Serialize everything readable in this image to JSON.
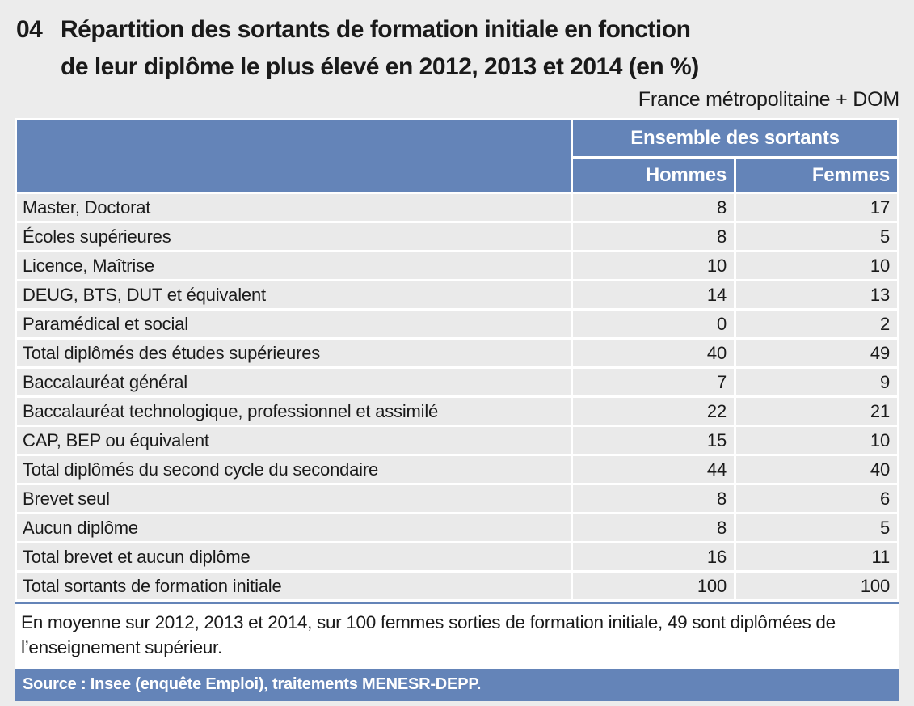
{
  "header": {
    "figure_number": "04",
    "title_lines": [
      "Répartition des sortants de formation initiale en fonction",
      "de leur diplôme le plus élevé en 2012, 2013 et 2014 (en %)"
    ],
    "region_label": "France métropolitaine + DOM"
  },
  "table": {
    "group_header": "Ensemble des sortants",
    "columns": [
      "Hommes",
      "Femmes"
    ],
    "rows": [
      {
        "label": "Master, Doctorat",
        "hommes": "8",
        "femmes": "17"
      },
      {
        "label": "Écoles supérieures",
        "hommes": "8",
        "femmes": "5"
      },
      {
        "label": "Licence, Maîtrise",
        "hommes": "10",
        "femmes": "10"
      },
      {
        "label": "DEUG, BTS, DUT et équivalent",
        "hommes": "14",
        "femmes": "13"
      },
      {
        "label": "Paramédical et social",
        "hommes": "0",
        "femmes": "2"
      },
      {
        "label": "Total diplômés des études supérieures",
        "hommes": "40",
        "femmes": "49"
      },
      {
        "label": "Baccalauréat général",
        "hommes": "7",
        "femmes": "9"
      },
      {
        "label": "Baccalauréat technologique, professionnel et assimilé",
        "hommes": "22",
        "femmes": "21"
      },
      {
        "label": "CAP, BEP ou équivalent",
        "hommes": "15",
        "femmes": "10"
      },
      {
        "label": "Total diplômés du second cycle du secondaire",
        "hommes": "44",
        "femmes": "40"
      },
      {
        "label": "Brevet seul",
        "hommes": "8",
        "femmes": "6"
      },
      {
        "label": "Aucun diplôme",
        "hommes": "8",
        "femmes": "5"
      },
      {
        "label": "Total brevet et aucun diplôme",
        "hommes": "16",
        "femmes": "11"
      },
      {
        "label": "Total sortants de formation initiale",
        "hommes": "100",
        "femmes": "100"
      }
    ]
  },
  "note": {
    "text": "En moyenne sur 2012, 2013 et 2014, sur 100 femmes sorties de formation initiale, 49 sont diplômées de l’enseignement supérieur."
  },
  "source": {
    "text": "Source : Insee (enquête Emploi), traitements MENESR-DEPP."
  },
  "colors": {
    "accent_blue": "#6484b8",
    "row_gray": "#eaeaea",
    "page_bg": "#ececec"
  }
}
